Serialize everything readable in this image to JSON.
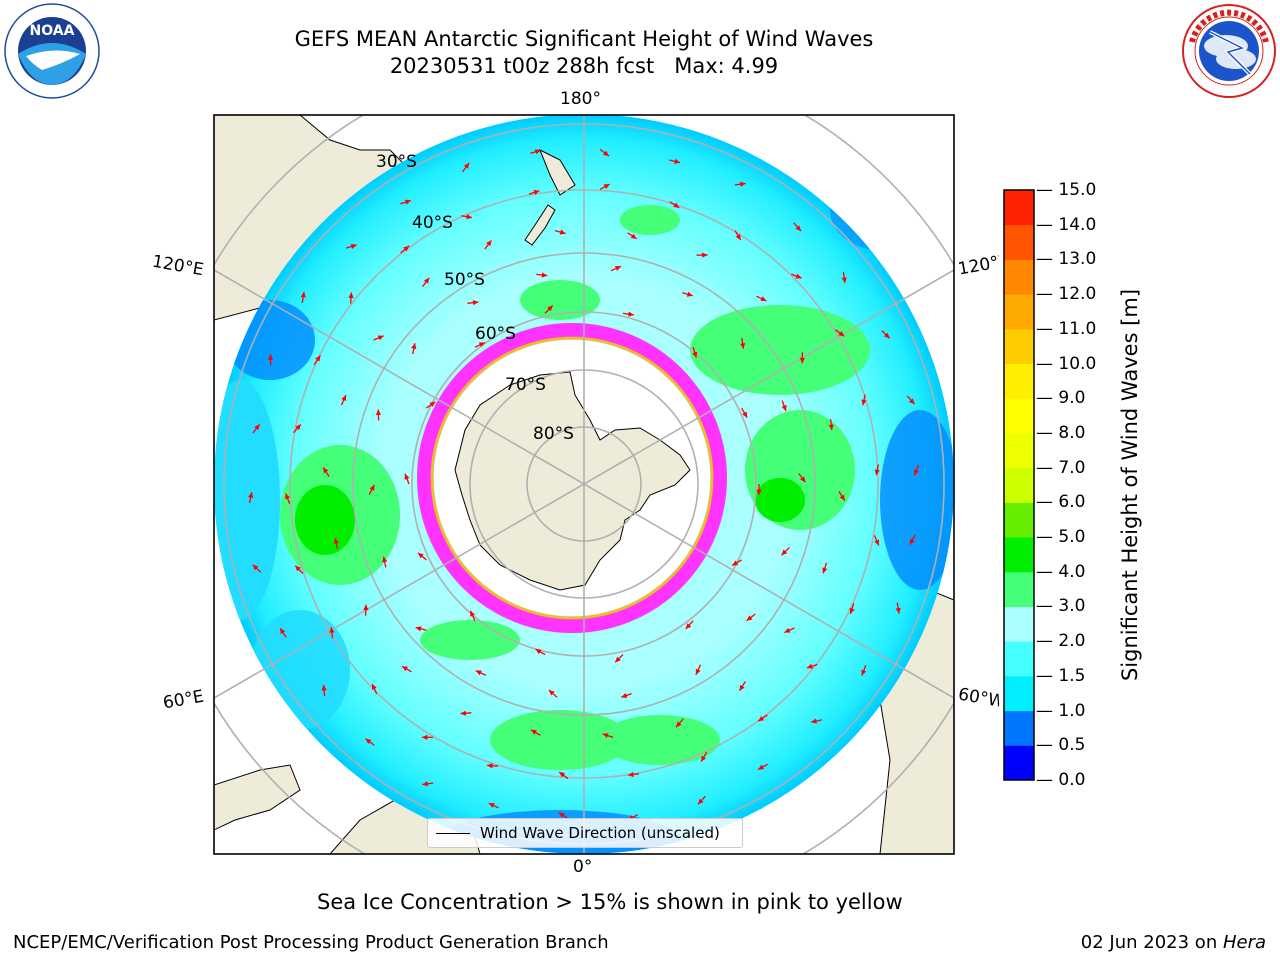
{
  "header": {
    "title_line1": "GEFS MEAN Antarctic Significant Height of Wind Waves",
    "title_line2": "20230531 t00z 288h fcst   Max: 4.99"
  },
  "logos": {
    "left": {
      "name": "noaa-logo",
      "text": "NOAA",
      "ring_text": "NATIONAL OCEANIC AND ATMOSPHERIC ADMINISTRATION · U.S. DEPARTMENT OF COMMERCE"
    },
    "right": {
      "name": "nws-logo",
      "ring_text": "NATIONAL WEATHER SERVICE"
    }
  },
  "map": {
    "projection": "south-polar-stereographic",
    "longitude_labels": {
      "top": "180°",
      "bottom": "0°",
      "upper_left": "120°E",
      "lower_left": "60°E",
      "upper_right": "120°W",
      "lower_right": "60°W"
    },
    "latitude_labels": [
      "30°S",
      "40°S",
      "50°S",
      "60°S",
      "70°S",
      "80°S"
    ],
    "colors": {
      "land": "#eeecd9",
      "ice_shelf": "#ffffff",
      "sea_ice": "#ff33ff",
      "arrows": "#ff0000",
      "grid": "#b0b0b0"
    },
    "legend_label": "Wind Wave Direction (unscaled)"
  },
  "colorbar": {
    "title": "Significant Height of Wind Waves [m]",
    "ticks": [
      "0.0",
      "0.5",
      "1.0",
      "1.5",
      "2.0",
      "3.0",
      "4.0",
      "5.0",
      "6.0",
      "7.0",
      "8.0",
      "9.0",
      "10.0",
      "11.0",
      "12.0",
      "13.0",
      "14.0",
      "15.0"
    ],
    "colors": [
      "#0000ff",
      "#0077ff",
      "#00eeff",
      "#44ffff",
      "#aaffff",
      "#44ff77",
      "#00ee00",
      "#66ee00",
      "#ccff00",
      "#eeff00",
      "#ffff00",
      "#ffee00",
      "#ffcc00",
      "#ffaa00",
      "#ff8800",
      "#ff5500",
      "#ff2200"
    ]
  },
  "footer": {
    "note": "Sea Ice Concentration > 15% is shown in pink to yellow",
    "credit_left": "NCEP/EMC/Verification Post Processing Product Generation Branch",
    "credit_date": "02 Jun 2023 on ",
    "credit_machine": "Hera"
  }
}
